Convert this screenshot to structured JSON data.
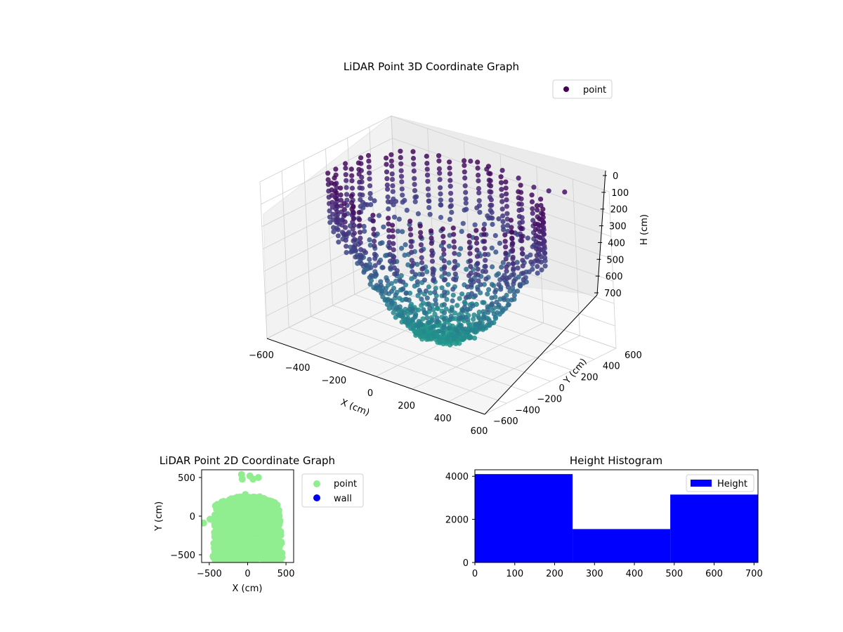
{
  "chart_data": [
    {
      "type": "scatter",
      "subtype": "3d",
      "title": "LiDAR Point 3D Coordinate Graph",
      "xlabel": "X (cm)",
      "ylabel": "Y (cm)",
      "zlabel": "H (cm)",
      "xlim": [
        -600,
        600
      ],
      "ylim": [
        -600,
        600
      ],
      "zlim": [
        0,
        700
      ],
      "z_inverted": true,
      "x_ticks": [
        "−600",
        "−400",
        "−200",
        "0",
        "200",
        "400",
        "600"
      ],
      "y_ticks": [
        "−600",
        "−400",
        "−200",
        "0",
        "200",
        "400",
        "600"
      ],
      "z_ticks": [
        "0",
        "100",
        "200",
        "300",
        "400",
        "500",
        "600",
        "700"
      ],
      "legend": [
        {
          "name": "point",
          "color": "#440154"
        }
      ],
      "legend_position": "top-right",
      "colormap": "viridis",
      "grid": true
    },
    {
      "type": "scatter",
      "title": "LiDAR Point 2D Coordinate Graph",
      "xlabel": "X (cm)",
      "ylabel": "Y (cm)",
      "xlim": [
        -600,
        600
      ],
      "ylim": [
        -600,
        600
      ],
      "x_ticks": [
        "−500",
        "0",
        "500"
      ],
      "y_ticks": [
        "−500",
        "0",
        "500"
      ],
      "series": [
        {
          "name": "point",
          "color": "#90ee90",
          "outliers": [
            [
              -575,
              -90
            ],
            [
              -490,
              -40
            ],
            [
              -440,
              -40
            ],
            [
              -80,
              540
            ],
            [
              -70,
              480
            ],
            [
              30,
              520
            ],
            [
              70,
              480
            ],
            [
              140,
              500
            ],
            [
              -30,
              280
            ]
          ]
        },
        {
          "name": "wall",
          "color": "#0000ee",
          "values": []
        }
      ],
      "legend_position": "outside-right",
      "grid": false
    },
    {
      "type": "bar",
      "subtype": "histogram",
      "title": "Height Histogram",
      "bins": [
        [
          0,
          245
        ],
        [
          245,
          490
        ],
        [
          490,
          710
        ]
      ],
      "values": [
        4100,
        1550,
        3150
      ],
      "xlim": [
        0,
        710
      ],
      "ylim": [
        0,
        4300
      ],
      "x_ticks": [
        "0",
        "100",
        "200",
        "300",
        "400",
        "500",
        "600",
        "700"
      ],
      "y_ticks": [
        "0",
        "2000",
        "4000"
      ],
      "series": [
        {
          "name": "Height",
          "color": "#0000ff"
        }
      ],
      "legend_position": "top-right",
      "grid": false
    }
  ]
}
